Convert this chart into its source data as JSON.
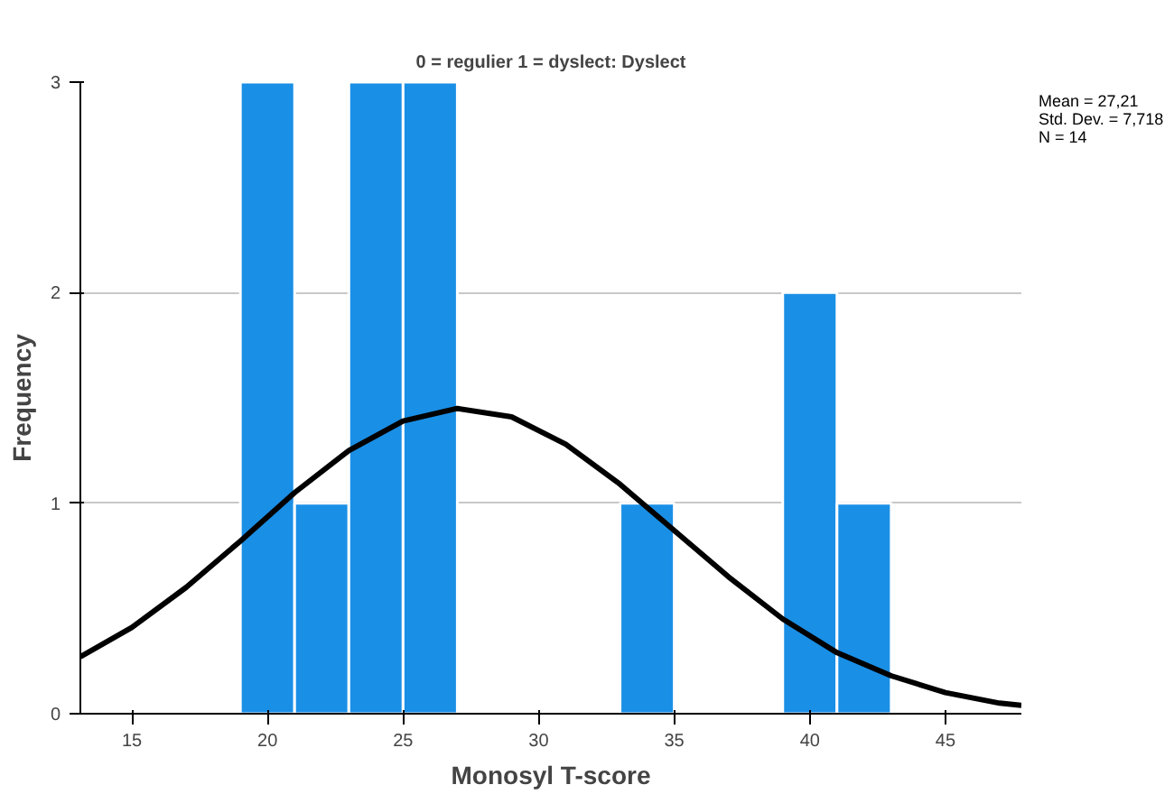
{
  "chart_data": {
    "type": "histogram",
    "title": "0 = regulier 1 = dyslect: Dyslect",
    "xlabel": "Monosyl T-score",
    "ylabel": "Frequency",
    "bins": [
      19,
      21,
      23,
      25,
      27,
      29,
      31,
      33,
      35,
      37,
      39,
      41,
      43
    ],
    "values": [
      3,
      1,
      3,
      3,
      0,
      0,
      0,
      1,
      0,
      0,
      2,
      1
    ],
    "color": "#1a8fe6",
    "series": [
      {
        "type": "line",
        "color": "#000000",
        "x": [
          13.1,
          15,
          17,
          19,
          21,
          23,
          25,
          27,
          29,
          31,
          33,
          35,
          37,
          39,
          41,
          43,
          45,
          47,
          47.8
        ],
        "values": [
          0.27,
          0.41,
          0.6,
          0.82,
          1.05,
          1.25,
          1.39,
          1.45,
          1.41,
          1.28,
          1.09,
          0.87,
          0.65,
          0.45,
          0.29,
          0.18,
          0.1,
          0.05,
          0.04
        ]
      }
    ],
    "xlim": [
      13.1,
      47.8
    ],
    "xticks": [
      15,
      20,
      25,
      30,
      35,
      40,
      45
    ],
    "ylim": [
      0,
      3
    ],
    "yticks": [
      0,
      1,
      2,
      3
    ],
    "grid": "y",
    "annotations": [
      "Mean = 27,21",
      "Std. Dev. = 7,718",
      "N = 14"
    ]
  }
}
